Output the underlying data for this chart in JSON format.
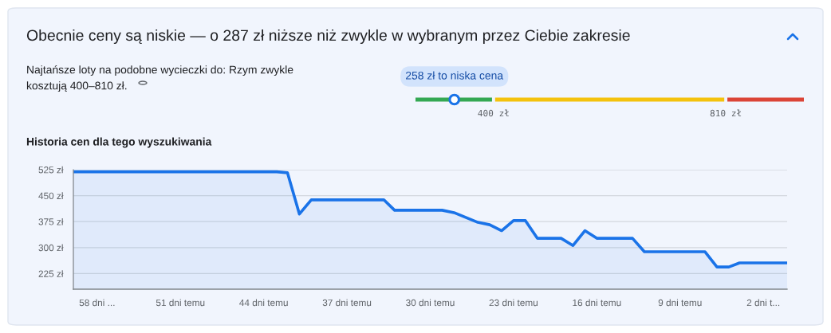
{
  "chart_data": [
    {
      "type": "other",
      "title": "Obecnie ceny są niskie — o 287 zł niższe niż zwykle w wybranym przez Ciebie zakresie",
      "subtitle": "Najtańsze loty na podobne wycieczki do: Rzym zwykle\nkosztują 400–810 zł.",
      "colors": [
        "#34a853",
        "#f4c20d",
        "#db4437"
      ],
      "annotations": [
        "258 zł to niska cena",
        "400 zł",
        "810 zł"
      ]
    },
    {
      "type": "area",
      "title": "Historia cen dla tego wyszukiwania",
      "x": [
        -60,
        -42.9,
        -42,
        -41,
        -40,
        -33.9,
        -33,
        -29,
        -28,
        -26,
        -25,
        -24,
        -23,
        -22,
        -21,
        -19,
        -18,
        -17,
        -16,
        -13,
        -12,
        -6.9,
        -5.9,
        -4.9,
        -4,
        0
      ],
      "series": [
        {
          "color": "#1a73e8",
          "values": [
            519,
            519,
            516,
            397,
            438,
            438,
            408,
            408,
            401,
            373,
            366,
            349,
            378,
            378,
            327,
            327,
            306,
            349,
            327,
            327,
            288,
            288,
            244,
            244,
            256,
            256
          ]
        }
      ],
      "xlim": [
        -60,
        0
      ],
      "xticks": [
        {
          "value": -58,
          "label": "58 dni ..."
        },
        {
          "value": -51,
          "label": "51 dni temu"
        },
        {
          "value": -44,
          "label": "44 dni temu"
        },
        {
          "value": -37,
          "label": "37 dni temu"
        },
        {
          "value": -30,
          "label": "30 dni temu"
        },
        {
          "value": -23,
          "label": "23 dni temu"
        },
        {
          "value": -16,
          "label": "16 dni temu"
        },
        {
          "value": -9,
          "label": "9 dni temu"
        },
        {
          "value": -2,
          "label": "2 dni t..."
        }
      ],
      "ylim": [
        180,
        525
      ],
      "yticks": [
        {
          "value": 225,
          "label": "225 zł"
        },
        {
          "value": 300,
          "label": "300 zł"
        },
        {
          "value": 375,
          "label": "375 zł"
        },
        {
          "value": 450,
          "label": "450 zł"
        },
        {
          "value": 525,
          "label": "525 zł"
        }
      ],
      "grid": "y",
      "legend": false
    }
  ]
}
